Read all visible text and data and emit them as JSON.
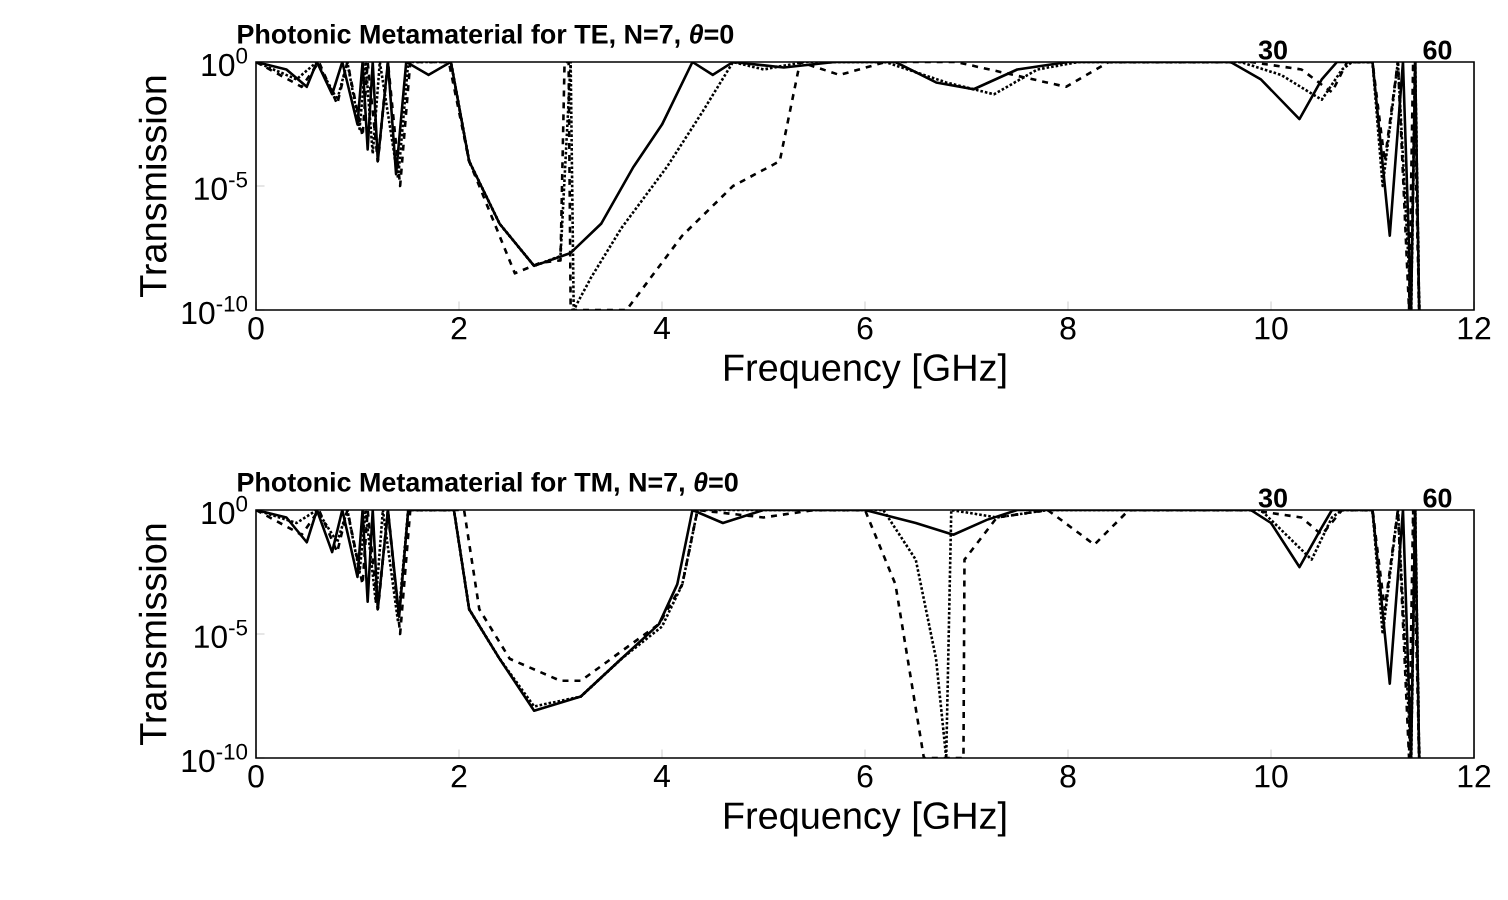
{
  "chart_data": [
    {
      "type": "line",
      "title": "Photonic Metamaterial for TE, N=7, *θ*=0",
      "annotations": [
        "30",
        "60"
      ],
      "xlabel": "Frequency [GHz]",
      "ylabel": "Transmission",
      "log": true,
      "xlim": [
        0,
        12
      ],
      "ylim": [
        1e-10,
        1
      ],
      "xticks": [
        0,
        2,
        4,
        6,
        8,
        10,
        12
      ],
      "yticks": [
        {
          "value": 1e-10,
          "label": "10$^{-10}$"
        },
        {
          "value": 1e-05,
          "label": "10$^{-5}$"
        },
        {
          "value": 1,
          "label": "10$^{0}$"
        }
      ],
      "series": [
        {
          "color": "#000000",
          "line_style": "solid",
          "x": [
            0,
            0.3,
            0.5,
            0.6,
            0.75,
            0.85,
            1.0,
            1.05,
            1.1,
            1.15,
            1.2,
            1.3,
            1.38,
            1.48,
            1.7,
            1.92,
            2.1,
            2.4,
            2.74,
            3.1,
            3.4,
            3.72,
            4.0,
            4.3,
            4.5,
            4.7,
            5.2,
            5.7,
            6.3,
            6.7,
            7.07,
            7.5,
            8.0,
            9.0,
            9.6,
            9.9,
            10.28,
            10.5,
            10.65,
            11.0,
            11.17,
            11.3,
            11.38,
            11.42,
            11.46
          ],
          "values": [
            1,
            0.5,
            0.1,
            1,
            0.05,
            1,
            0.003,
            1,
            0.0003,
            1,
            0.0001,
            1,
            3e-05,
            1,
            0.3,
            1,
            0.0001,
            3e-07,
            6e-09,
            2e-08,
            3e-07,
            6e-05,
            0.003,
            1,
            0.3,
            1,
            0.6,
            1,
            1,
            0.15,
            0.08,
            0.5,
            1,
            1,
            1,
            0.2,
            0.005,
            0.2,
            1,
            1,
            1e-07,
            1,
            1e-10,
            1,
            1e-10
          ]
        },
        {
          "color": "#000000",
          "line_style": "dotted",
          "x": [
            0,
            0.4,
            0.6,
            0.8,
            0.9,
            1.02,
            1.08,
            1.15,
            1.22,
            1.4,
            1.5,
            1.92,
            2.1,
            2.4,
            2.74,
            3.0,
            3.1,
            3.13,
            3.3,
            3.6,
            4.05,
            4.4,
            4.7,
            5.0,
            5.4,
            6.2,
            6.8,
            7.27,
            7.7,
            8.1,
            9.7,
            10.1,
            10.5,
            10.7,
            10.8,
            11.0,
            11.1,
            11.25,
            11.38,
            11.42,
            11.46
          ],
          "values": [
            1,
            0.2,
            1,
            0.03,
            1,
            0.002,
            1,
            0.0002,
            1,
            2e-05,
            1,
            1,
            0.0001,
            3e-07,
            6e-09,
            1.5e-08,
            1,
            1e-10,
            2e-09,
            2e-07,
            6e-05,
            0.01,
            1,
            0.5,
            1,
            1,
            0.15,
            0.05,
            0.5,
            1,
            1,
            0.3,
            0.03,
            0.5,
            1,
            1,
            1e-05,
            1,
            1e-10,
            1,
            1e-10
          ]
        },
        {
          "color": "#000000",
          "line_style": "dashed",
          "x": [
            0,
            0.45,
            0.62,
            0.8,
            0.9,
            1.05,
            1.1,
            1.2,
            1.3,
            1.42,
            1.52,
            1.9,
            2.1,
            2.55,
            2.8,
            3.0,
            3.04,
            3.08,
            3.1,
            3.65,
            4.2,
            4.7,
            5.16,
            5.36,
            5.75,
            6.2,
            6.9,
            7.98,
            8.4,
            9.8,
            10.3,
            10.6,
            10.75,
            11.0,
            11.12,
            11.25,
            11.36,
            11.4,
            11.46
          ],
          "values": [
            1,
            0.1,
            1,
            0.02,
            1,
            0.001,
            1,
            0.0001,
            1,
            1e-05,
            1,
            1,
            0.0001,
            3e-09,
            8e-09,
            1e-08,
            1,
            1,
            1e-10,
            1e-10,
            1e-07,
            1e-05,
            0.0001,
            1,
            0.3,
            1,
            1,
            0.1,
            1,
            1,
            0.5,
            0.06,
            1,
            1,
            0.0001,
            1,
            1e-10,
            1,
            1e-10
          ]
        }
      ]
    },
    {
      "type": "line",
      "title": "Photonic Metamaterial for TM, N=7, *θ*=0",
      "annotations": [
        "30",
        "60"
      ],
      "xlabel": "Frequency [GHz]",
      "ylabel": "Transmission",
      "log": true,
      "xlim": [
        0,
        12
      ],
      "ylim": [
        1e-10,
        1
      ],
      "xticks": [
        0,
        2,
        4,
        6,
        8,
        10,
        12
      ],
      "yticks": [
        {
          "value": 1e-10,
          "label": "10$^{-10}$"
        },
        {
          "value": 1e-05,
          "label": "10$^{-5}$"
        },
        {
          "value": 1,
          "label": "10$^{0}$"
        }
      ],
      "series": [
        {
          "color": "#000000",
          "line_style": "solid",
          "x": [
            0,
            0.3,
            0.5,
            0.6,
            0.75,
            0.85,
            1.0,
            1.05,
            1.1,
            1.15,
            1.2,
            1.3,
            1.41,
            1.5,
            1.95,
            2.1,
            2.4,
            2.74,
            3.2,
            3.6,
            3.97,
            4.15,
            4.3,
            4.6,
            5.0,
            6.0,
            6.5,
            6.87,
            7.2,
            7.5,
            9.8,
            10.0,
            10.28,
            10.5,
            10.6,
            11.0,
            11.17,
            11.3,
            11.38,
            11.42,
            11.46
          ],
          "values": [
            1,
            0.5,
            0.05,
            1,
            0.02,
            1,
            0.002,
            1,
            0.0002,
            1,
            0.0001,
            1,
            5e-05,
            1,
            1,
            0.0001,
            1e-06,
            8e-09,
            3e-08,
            1e-06,
            2.5e-05,
            0.001,
            1,
            0.3,
            1,
            1,
            0.3,
            0.1,
            0.4,
            1,
            1,
            0.3,
            0.005,
            0.2,
            1,
            1,
            1e-07,
            1,
            1e-10,
            1,
            1e-10
          ]
        },
        {
          "color": "#000000",
          "line_style": "dotted",
          "x": [
            0,
            0.4,
            0.6,
            0.8,
            0.9,
            1.02,
            1.08,
            1.18,
            1.25,
            1.4,
            1.5,
            1.95,
            2.1,
            2.4,
            2.74,
            3.2,
            3.6,
            4.0,
            4.2,
            4.35,
            5.0,
            6.18,
            6.5,
            6.7,
            6.8,
            6.85,
            7.3,
            7.8,
            9.9,
            10.4,
            10.6,
            10.7,
            11.0,
            11.1,
            11.25,
            11.38,
            11.42,
            11.46
          ],
          "values": [
            1,
            0.3,
            1,
            0.05,
            1,
            0.003,
            1,
            0.0002,
            1,
            3e-05,
            1,
            1,
            0.0001,
            1e-06,
            1.2e-08,
            3e-08,
            1e-06,
            2e-05,
            0.001,
            1,
            1,
            1,
            0.01,
            1e-06,
            1e-10,
            1,
            0.5,
            1,
            1,
            0.01,
            0.5,
            1,
            1,
            1e-05,
            1,
            1e-10,
            1,
            1e-10
          ]
        },
        {
          "color": "#000000",
          "line_style": "dashed",
          "x": [
            0,
            0.45,
            0.62,
            0.8,
            0.9,
            1.05,
            1.1,
            1.2,
            1.3,
            1.42,
            1.52,
            2.05,
            2.2,
            2.5,
            3.0,
            3.2,
            3.6,
            3.97,
            4.2,
            4.35,
            5.0,
            5.5,
            6.0,
            6.3,
            6.58,
            6.97,
            6.98,
            7.3,
            7.8,
            8.26,
            8.6,
            9.8,
            10.3,
            10.5,
            10.7,
            11.0,
            11.12,
            11.25,
            11.36,
            11.4,
            11.46
          ],
          "values": [
            1,
            0.1,
            1,
            0.02,
            1,
            0.001,
            1,
            0.0001,
            1,
            1e-05,
            1,
            1,
            0.0001,
            1e-06,
            1.3e-07,
            1.3e-07,
            2e-06,
            2.5e-05,
            0.001,
            1,
            0.5,
            1,
            1,
            0.001,
            1e-10,
            1e-10,
            0.01,
            0.5,
            1,
            0.04,
            1,
            1,
            0.5,
            0.1,
            1,
            1,
            0.0001,
            1,
            1e-10,
            1,
            1e-10
          ]
        }
      ]
    }
  ]
}
